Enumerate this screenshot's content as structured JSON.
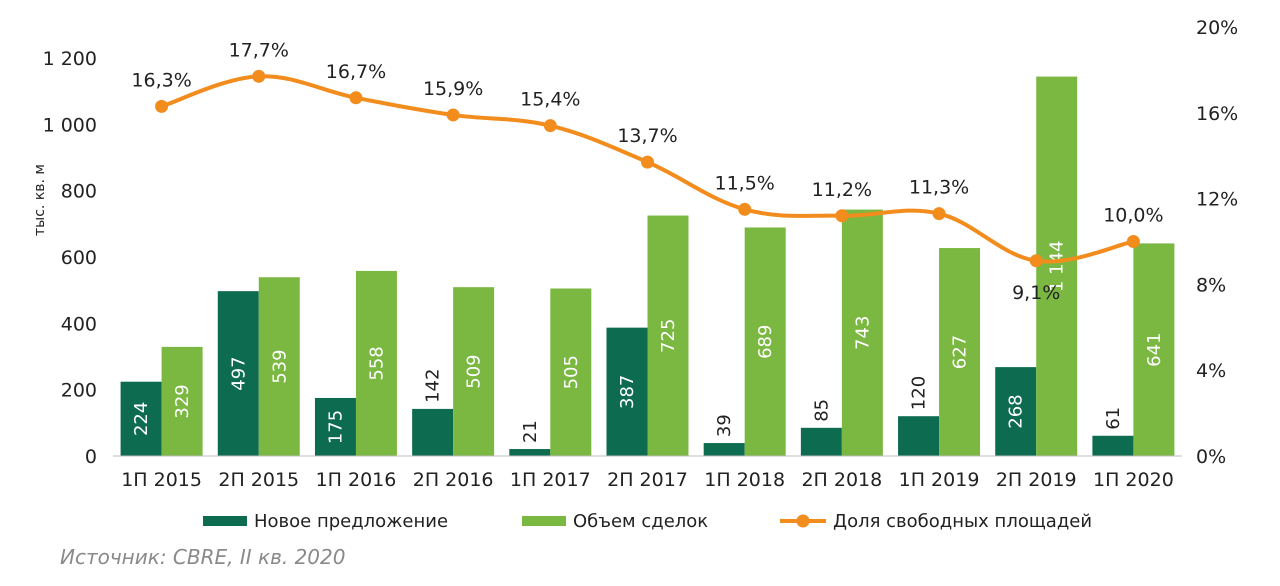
{
  "source": "Источник: CBRE, II кв. 2020",
  "colors": {
    "series_new": "#0d6b4f",
    "series_deals": "#7bb842",
    "series_vacancy": "#f28c1d",
    "text": "#222222"
  },
  "chart_data": {
    "type": "bar",
    "categories": [
      "1П 2015",
      "2П 2015",
      "1П 2016",
      "2П 2016",
      "1П 2017",
      "2П 2017",
      "1П 2018",
      "2П 2018",
      "1П 2019",
      "2П 2019",
      "1П 2020"
    ],
    "ylabel": "тыс. кв. м",
    "ylim": [
      0,
      1200
    ],
    "yticks": [
      0,
      200,
      400,
      600,
      800,
      1000,
      1200
    ],
    "ytick_labels": [
      "0",
      "200",
      "400",
      "600",
      "800",
      "1 000",
      "1 200"
    ],
    "y2lim": [
      0,
      20
    ],
    "y2ticks": [
      0,
      4,
      8,
      12,
      16,
      20
    ],
    "y2tick_labels": [
      "0%",
      "4%",
      "8%",
      "12%",
      "16%",
      "20%"
    ],
    "legend_position": "bottom",
    "grid": false,
    "series": [
      {
        "name": "Новое предложение",
        "type": "bar",
        "values": [
          224,
          497,
          175,
          142,
          21,
          387,
          39,
          85,
          120,
          268,
          61
        ],
        "labels": [
          "224",
          "497",
          "175",
          "142",
          "21",
          "387",
          "39",
          "85",
          "120",
          "268",
          "61"
        ]
      },
      {
        "name": "Объем сделок",
        "type": "bar",
        "values": [
          329,
          539,
          558,
          509,
          505,
          725,
          689,
          743,
          627,
          1144,
          641
        ],
        "labels": [
          "329",
          "539",
          "558",
          "509",
          "505",
          "725",
          "689",
          "743",
          "627",
          "1 144",
          "641"
        ]
      },
      {
        "name": "Доля свободных площадей",
        "type": "line",
        "axis": "right",
        "values": [
          16.3,
          17.7,
          16.7,
          15.9,
          15.4,
          13.7,
          11.5,
          11.2,
          11.3,
          9.1,
          10.0
        ],
        "labels": [
          "16,3%",
          "17,7%",
          "16,7%",
          "15,9%",
          "15,4%",
          "13,7%",
          "11,5%",
          "11,2%",
          "11,3%",
          "9,1%",
          "10,0%"
        ]
      }
    ]
  }
}
